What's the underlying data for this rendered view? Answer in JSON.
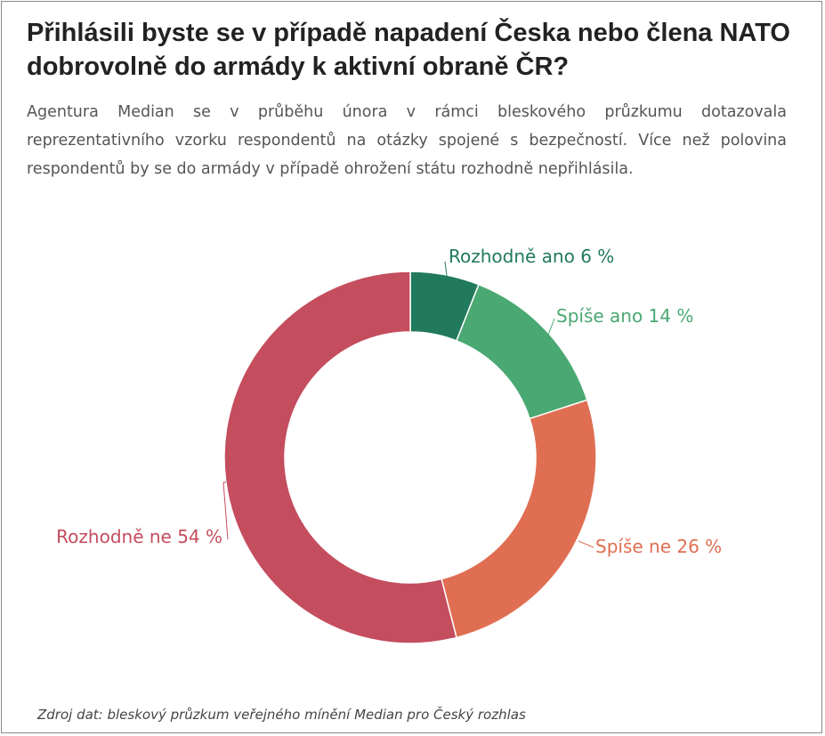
{
  "title": "Přihlásili byste se v případě napadení Česka nebo člena NATO dobrovolně do armády k aktivní obraně ČR?",
  "subtitle": "Agentura Median se v průběhu února v rámci bleskového průzkumu dotazovala reprezentativního vzorku respondentů na otázky spojené s bezpečností. Více než polovina respondentů by se do armády v případě ohrožení státu rozhodně nepřihlásila.",
  "source": "Zdroj dat: bleskový průzkum veřejného mínění Median pro Český rozhlas",
  "chart_data": {
    "type": "pie",
    "donut": true,
    "slices": [
      {
        "name": "Rozhodně ano",
        "value": 6,
        "label": "Rozhodně ano 6 %",
        "color": "#217a5b"
      },
      {
        "name": "Spíše ano",
        "value": 14,
        "label": "Spíše ano 14 %",
        "color": "#4aa872"
      },
      {
        "name": "Spíše ne",
        "value": 26,
        "label": "Spíše ne 26 %",
        "color": "#e06e52"
      },
      {
        "name": "Rozhodně ne",
        "value": 54,
        "label": "Rozhodně ne 54 %",
        "color": "#c44d5e"
      }
    ]
  }
}
